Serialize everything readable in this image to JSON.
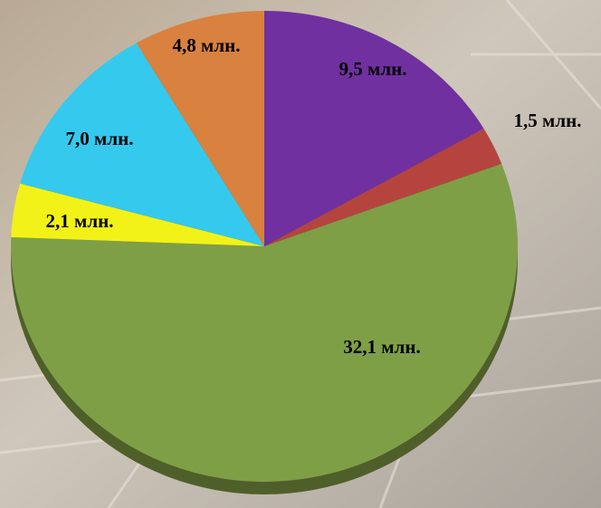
{
  "chart_data": {
    "type": "pie",
    "categories": [
      null,
      null,
      null,
      null,
      null,
      null
    ],
    "values": [
      9.5,
      1.5,
      32.1,
      2.1,
      7.0,
      4.8
    ],
    "value_labels": [
      "9,5 млн.",
      "1,5 млн.",
      "32,1 млн.",
      "2,1 млн.",
      "7,0 млн.",
      "4,8 млн."
    ],
    "colors": [
      "#7030a0",
      "#b5443f",
      "#7f9f47",
      "#f2f218",
      "#35c9ee",
      "#d9813f"
    ]
  }
}
